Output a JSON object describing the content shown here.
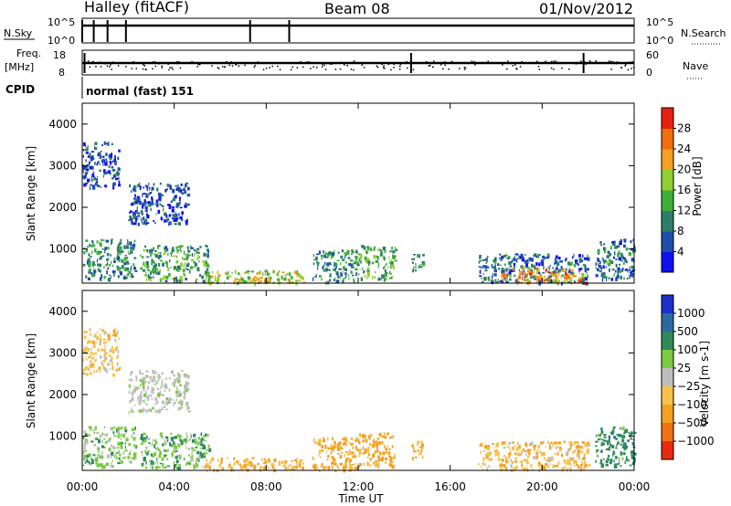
{
  "header": {
    "station": "Halley (fitACF)",
    "beam": "Beam 08",
    "date": "01/Nov/2012"
  },
  "strip": {
    "nsky_label": "N.Sky",
    "nsky_ticks": [
      "10^5",
      "10^0"
    ],
    "nsearch_label": "N.Search",
    "nsearch_ticks": [
      "10^5",
      "10^0"
    ],
    "freq_label": "Freq.",
    "freq_unit": "[MHz]",
    "freq_ticks": [
      "18",
      "8"
    ],
    "nave_label": "Nave",
    "nave_ticks": [
      "60",
      "0"
    ],
    "cpid_label": "CPID",
    "cpid_value": "normal (fast) 151"
  },
  "chart_data": [
    {
      "type": "heatmap",
      "panel": "power",
      "ylabel": "Slant Range [km]",
      "yticks": [
        "1000",
        "2000",
        "3000",
        "4000"
      ],
      "ylim": [
        180,
        4500
      ],
      "xlim": [
        0,
        24
      ],
      "colorbar": {
        "label": "Power [dB]",
        "tick_labels": [
          "4",
          "8",
          "12",
          "16",
          "20",
          "24",
          "28"
        ],
        "colors": [
          "#1010f0",
          "#1e4ea8",
          "#2e7d6a",
          "#3fae3a",
          "#8fd030",
          "#f5a020",
          "#f07010",
          "#e82010"
        ]
      },
      "regions": [
        {
          "t0": 0.0,
          "t1": 2.3,
          "r0": 300,
          "r1": 1250,
          "value": 10
        },
        {
          "t0": 0.0,
          "t1": 1.6,
          "r0": 2500,
          "r1": 3600,
          "value": 6
        },
        {
          "t0": 2.0,
          "t1": 4.6,
          "r0": 1600,
          "r1": 2600,
          "value": 5
        },
        {
          "t0": 2.5,
          "t1": 5.5,
          "r0": 250,
          "r1": 1100,
          "value": 12
        },
        {
          "t0": 5.3,
          "t1": 9.6,
          "r0": 200,
          "r1": 500,
          "value": 18
        },
        {
          "t0": 7.2,
          "t1": 8.2,
          "r0": 200,
          "r1": 330,
          "value": 24
        },
        {
          "t0": 10.0,
          "t1": 12.0,
          "r0": 200,
          "r1": 1000,
          "value": 10
        },
        {
          "t0": 12.0,
          "t1": 13.6,
          "r0": 300,
          "r1": 1100,
          "value": 14
        },
        {
          "t0": 14.3,
          "t1": 14.8,
          "r0": 500,
          "r1": 900,
          "value": 12
        },
        {
          "t0": 17.2,
          "t1": 22.0,
          "r0": 200,
          "r1": 900,
          "value": 8
        },
        {
          "t0": 18.2,
          "t1": 21.8,
          "r0": 200,
          "r1": 560,
          "value": 24
        },
        {
          "t0": 22.3,
          "t1": 24.0,
          "r0": 300,
          "r1": 1250,
          "value": 8
        }
      ]
    },
    {
      "type": "heatmap",
      "panel": "velocity",
      "ylabel": "Slant Range [km]",
      "yticks": [
        "1000",
        "2000",
        "3000",
        "4000"
      ],
      "ylim": [
        180,
        4500
      ],
      "xlim": [
        0,
        24
      ],
      "xlabel": "Time UT",
      "xticks": [
        "00:00",
        "04:00",
        "08:00",
        "12:00",
        "16:00",
        "20:00",
        "00:00"
      ],
      "colorbar": {
        "label": "Velocity [m s-1]",
        "tick_labels": [
          "1000",
          "500",
          "100",
          "25",
          "−25",
          "−100",
          "−500",
          "−1000"
        ],
        "colors": [
          "#1a30c8",
          "#2a6aa0",
          "#2e8a5a",
          "#7acb40",
          "#bdbdbd",
          "#f6c24a",
          "#f5a020",
          "#f07012",
          "#e82a10"
        ]
      },
      "regions": [
        {
          "t0": 0.0,
          "t1": 2.3,
          "r0": 300,
          "r1": 1250,
          "value": 60
        },
        {
          "t0": 0.0,
          "t1": 1.6,
          "r0": 2500,
          "r1": 3600,
          "value": -60
        },
        {
          "t0": 2.0,
          "t1": 4.6,
          "r0": 1600,
          "r1": 2600,
          "value": 10
        },
        {
          "t0": 2.5,
          "t1": 5.5,
          "r0": 250,
          "r1": 1100,
          "value": 80
        },
        {
          "t0": 5.3,
          "t1": 9.6,
          "r0": 200,
          "r1": 500,
          "value": -150
        },
        {
          "t0": 10.0,
          "t1": 12.0,
          "r0": 200,
          "r1": 1000,
          "value": -200
        },
        {
          "t0": 12.0,
          "t1": 13.6,
          "r0": 300,
          "r1": 1100,
          "value": -250
        },
        {
          "t0": 14.3,
          "t1": 14.8,
          "r0": 500,
          "r1": 900,
          "value": -200
        },
        {
          "t0": 17.2,
          "t1": 22.0,
          "r0": 200,
          "r1": 900,
          "value": -90
        },
        {
          "t0": 22.3,
          "t1": 24.0,
          "r0": 300,
          "r1": 1250,
          "value": 300
        }
      ]
    }
  ]
}
